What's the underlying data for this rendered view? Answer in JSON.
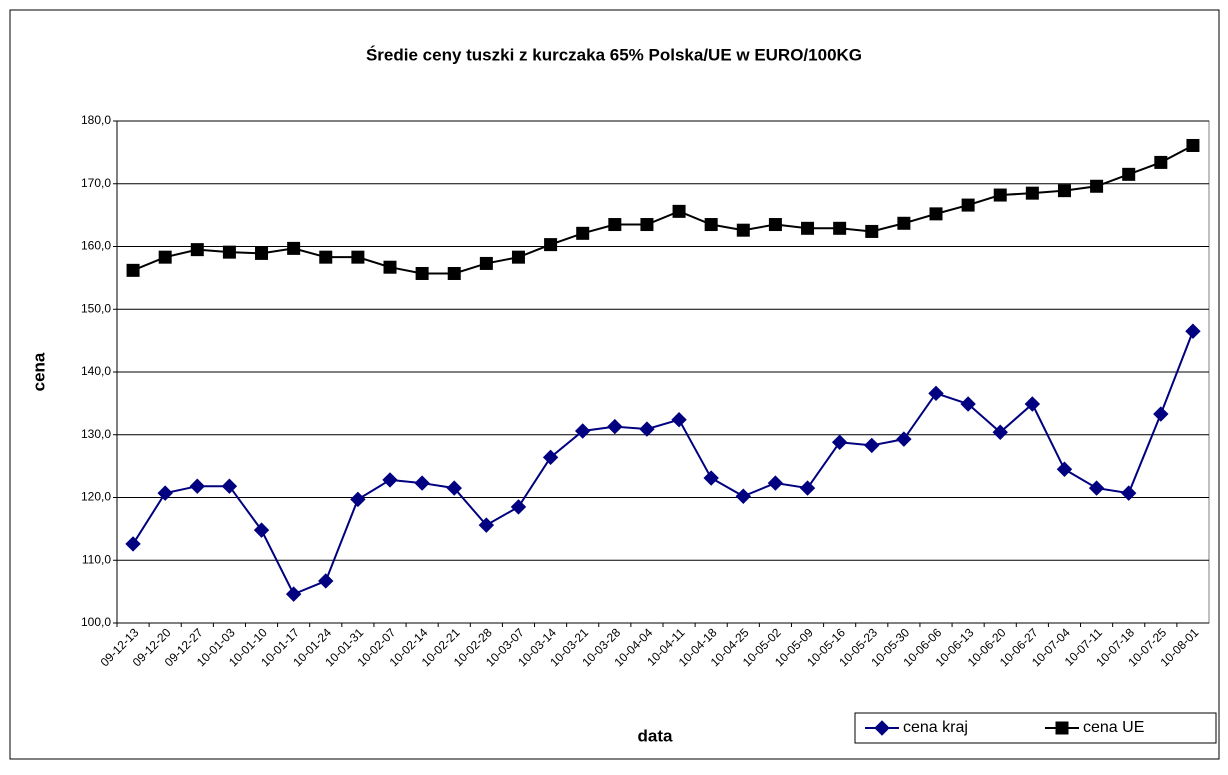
{
  "chart_data": {
    "type": "line",
    "title": "Średie ceny tuszki z kurczaka 65% Polska/UE w EURO/100KG",
    "x_label": "data",
    "y_label": "cena",
    "categories": [
      "09-12-13",
      "09-12-20",
      "09-12-27",
      "10-01-03",
      "10-01-10",
      "10-01-17",
      "10-01-24",
      "10-01-31",
      "10-02-07",
      "10-02-14",
      "10-02-21",
      "10-02-28",
      "10-03-07",
      "10-03-14",
      "10-03-21",
      "10-03-28",
      "10-04-04",
      "10-04-11",
      "10-04-18",
      "10-04-25",
      "10-05-02",
      "10-05-09",
      "10-05-16",
      "10-05-23",
      "10-05-30",
      "10-06-06",
      "10-06-13",
      "10-06-20",
      "10-06-27",
      "10-07-04",
      "10-07-11",
      "10-07-18",
      "10-07-25",
      "10-08-01"
    ],
    "series": [
      {
        "name": "cena kraj",
        "color": "#000080",
        "marker": "diamond",
        "values": [
          112.6,
          120.7,
          121.8,
          121.8,
          114.8,
          104.6,
          106.7,
          119.7,
          122.8,
          122.3,
          121.5,
          115.6,
          118.5,
          126.4,
          130.6,
          131.3,
          130.9,
          132.4,
          123.1,
          120.2,
          122.3,
          121.5,
          128.8,
          128.3,
          129.3,
          136.6,
          134.9,
          130.4,
          134.9,
          124.5,
          121.5,
          120.7,
          133.3,
          146.5
        ]
      },
      {
        "name": "cena UE",
        "color": "#000000",
        "marker": "square",
        "values": [
          156.2,
          158.3,
          159.5,
          159.1,
          158.9,
          159.7,
          158.3,
          158.3,
          156.7,
          155.7,
          155.7,
          157.3,
          158.3,
          160.3,
          162.1,
          163.5,
          163.5,
          165.6,
          163.5,
          162.6,
          163.5,
          162.9,
          162.9,
          162.4,
          163.7,
          165.2,
          166.6,
          168.2,
          168.5,
          168.9,
          169.6,
          171.5,
          173.4,
          176.1
        ]
      }
    ],
    "ylim": [
      100,
      180
    ],
    "yticks": [
      {
        "value": 100,
        "label": "100,0"
      },
      {
        "value": 110,
        "label": "110,0"
      },
      {
        "value": 120,
        "label": "120,0"
      },
      {
        "value": 130,
        "label": "130,0"
      },
      {
        "value": 140,
        "label": "140,0"
      },
      {
        "value": 150,
        "label": "150,0"
      },
      {
        "value": 160,
        "label": "160,0"
      },
      {
        "value": 170,
        "label": "170,0"
      },
      {
        "value": 180,
        "label": "180,0"
      }
    ],
    "grid": true,
    "legend": "bottom-right"
  }
}
